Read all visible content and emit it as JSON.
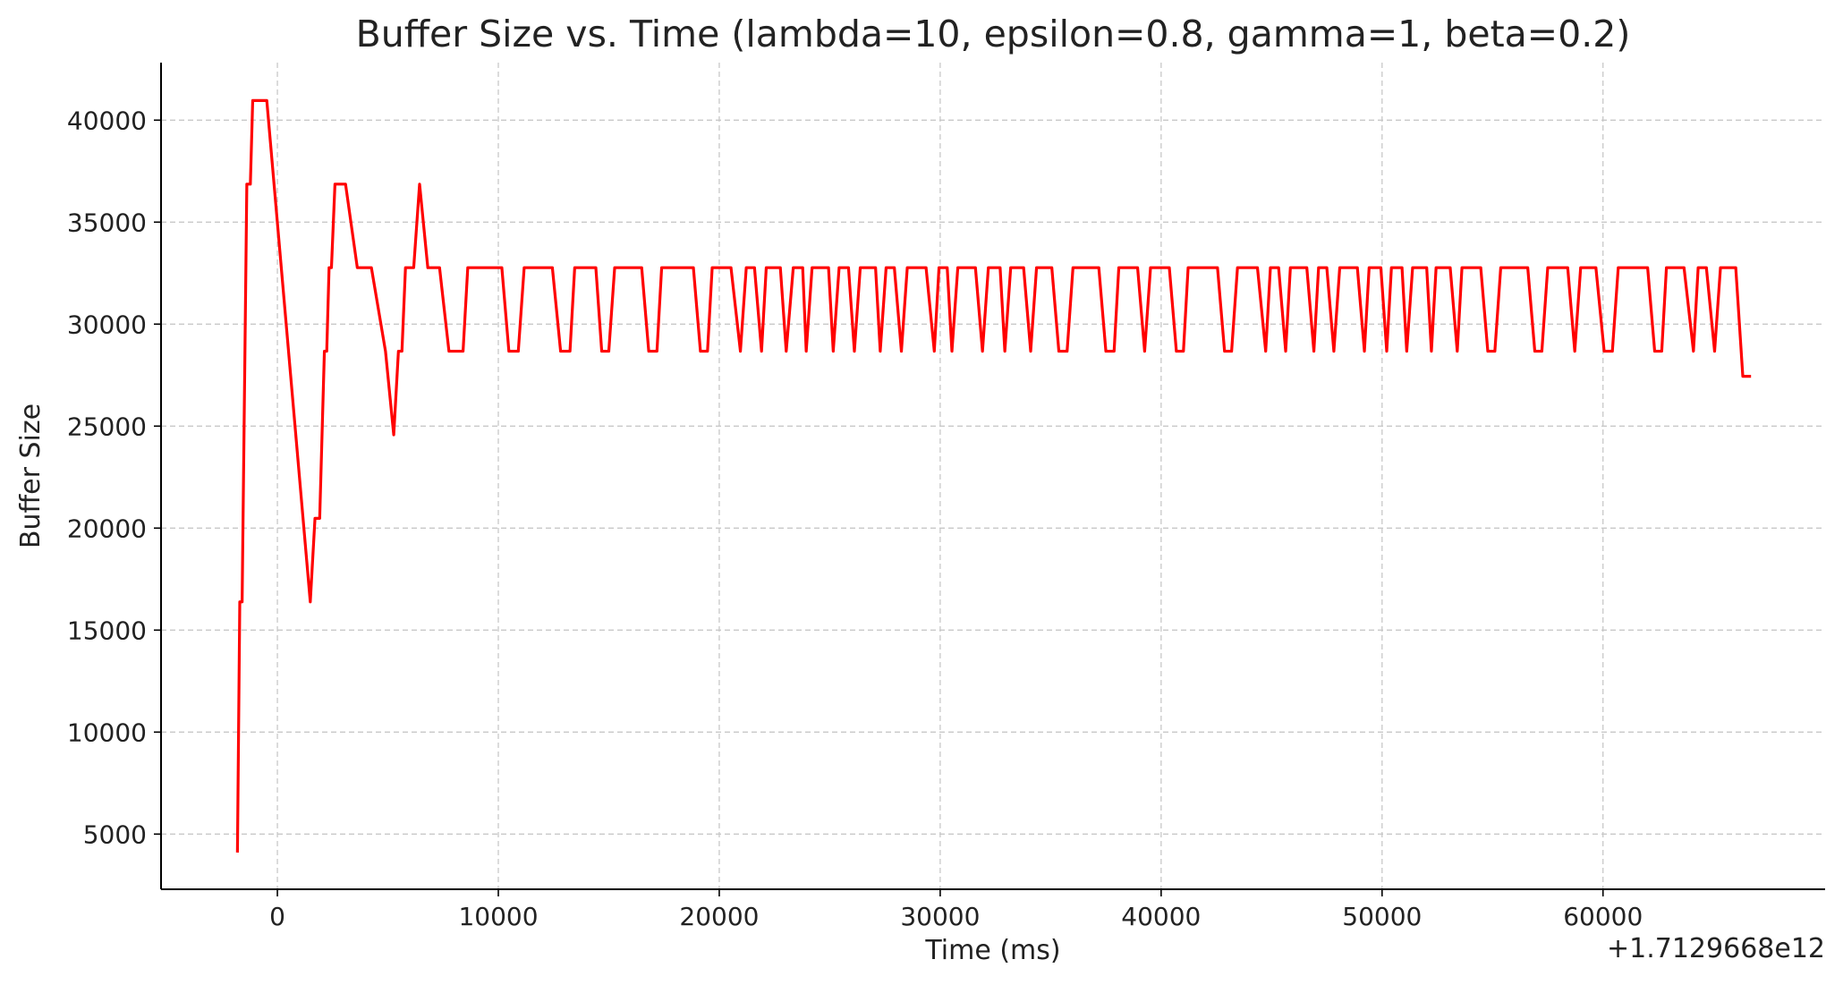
{
  "chart_data": {
    "type": "line",
    "title": "Buffer Size vs. Time (lambda=10, epsilon=0.8, gamma=1, beta=0.2)",
    "x_label": "Time (ms)",
    "y_label": "Buffer Size",
    "x_offset_label": "+1.7129668e12",
    "color": "#ff0000",
    "grid": true,
    "xlim": [
      -5266,
      70053
    ],
    "ylim": [
      2295,
      42820
    ],
    "xticks": [
      0,
      10000,
      20000,
      30000,
      40000,
      50000,
      60000
    ],
    "yticks": [
      5000,
      10000,
      15000,
      20000,
      25000,
      30000,
      35000,
      40000
    ],
    "x": [
      -1808,
      -1702,
      -1596,
      -1383,
      -1223,
      -1117,
      -479,
      1489,
      1702,
      1915,
      2128,
      2234,
      2340,
      2447,
      2606,
      3085,
      3617,
      4255,
      4893,
      5266,
      5479,
      5638,
      5798,
      6170,
      6436,
      6808,
      7340,
      7766,
      8404,
      8617,
      10159,
      10478,
      10904,
      11170,
      12446,
      12819,
      13244,
      13457,
      14414,
      14680,
      15000,
      15266,
      16489,
      16808,
      17180,
      17393,
      18829,
      19148,
      19468,
      19680,
      20531,
      20957,
      21223,
      21595,
      21914,
      22127,
      22765,
      23031,
      23350,
      23776,
      23936,
      24201,
      24946,
      25159,
      25425,
      25850,
      26116,
      26382,
      27074,
      27286,
      27552,
      27925,
      28244,
      28510,
      29361,
      29733,
      29946,
      30318,
      30531,
      30797,
      31595,
      31914,
      32180,
      32712,
      32925,
      33191,
      33776,
      34095,
      34361,
      35052,
      35371,
      35744,
      36010,
      37180,
      37499,
      37871,
      38084,
      38935,
      39253,
      39520,
      40371,
      40690,
      41009,
      41222,
      42552,
      42871,
      43190,
      43456,
      44360,
      44733,
      44946,
      45318,
      45637,
      45850,
      46594,
      46914,
      47126,
      47499,
      47818,
      48084,
      48882,
      49201,
      49414,
      49945,
      50211,
      50424,
      50903,
      51116,
      51382,
      52020,
      52233,
      52445,
      53084,
      53403,
      53616,
      54467,
      54786,
      55105,
      55371,
      56594,
      56913,
      57232,
      57498,
      58403,
      58722,
      58988,
      59679,
      60052,
      60424,
      60690,
      62020,
      62339,
      62658,
      62871,
      63668,
      64094,
      64307,
      64679,
      65051,
      65317,
      66009,
      66328,
      66700
    ],
    "values": [
      4096,
      16384,
      16384,
      36864,
      36864,
      40960,
      40960,
      16384,
      20480,
      20480,
      28672,
      28672,
      32768,
      32768,
      36864,
      36864,
      32768,
      32768,
      28672,
      24576,
      28672,
      28672,
      32768,
      32768,
      36864,
      32768,
      32768,
      28672,
      28672,
      32768,
      32768,
      28672,
      28672,
      32768,
      32768,
      28672,
      28672,
      32768,
      32768,
      28672,
      28672,
      32768,
      32768,
      28672,
      28672,
      32768,
      32768,
      28672,
      28672,
      32768,
      32768,
      28672,
      32768,
      32768,
      28672,
      32768,
      32768,
      28672,
      32768,
      32768,
      28672,
      32768,
      32768,
      28672,
      32768,
      32768,
      28672,
      32768,
      32768,
      28672,
      32768,
      32768,
      28672,
      32768,
      32768,
      28672,
      32768,
      32768,
      28672,
      32768,
      32768,
      28672,
      32768,
      32768,
      28672,
      32768,
      32768,
      28672,
      32768,
      32768,
      28672,
      28672,
      32768,
      32768,
      28672,
      28672,
      32768,
      32768,
      28672,
      32768,
      32768,
      28672,
      28672,
      32768,
      32768,
      28672,
      28672,
      32768,
      32768,
      28672,
      32768,
      32768,
      28672,
      32768,
      32768,
      28672,
      32768,
      32768,
      28672,
      32768,
      32768,
      28672,
      32768,
      32768,
      28672,
      32768,
      32768,
      28672,
      32768,
      32768,
      28672,
      32768,
      32768,
      28672,
      32768,
      32768,
      28672,
      28672,
      32768,
      32768,
      28672,
      28672,
      32768,
      32768,
      28672,
      32768,
      32768,
      28672,
      28672,
      32768,
      32768,
      28672,
      28672,
      32768,
      32768,
      28672,
      32768,
      32768,
      28672,
      32768,
      32768,
      27443,
      27443
    ]
  }
}
